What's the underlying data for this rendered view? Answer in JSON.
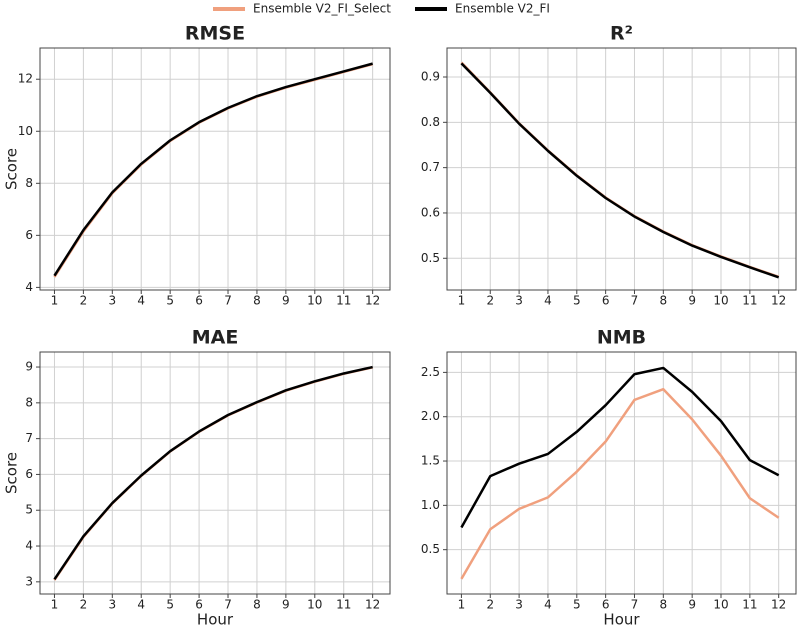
{
  "chart_data": [
    {
      "type": "line",
      "title": "RMSE",
      "ylabel": "Score",
      "x": [
        1,
        2,
        3,
        4,
        5,
        6,
        7,
        8,
        9,
        10,
        11,
        12
      ],
      "xlim": [
        0.5,
        12.6
      ],
      "xticks": [
        1,
        2,
        3,
        4,
        5,
        6,
        7,
        8,
        9,
        10,
        11,
        12
      ],
      "ylim": [
        3.9,
        13.2
      ],
      "yticks": [
        4,
        6,
        8,
        10,
        12
      ],
      "grid": true,
      "series": [
        {
          "name": "Ensemble V2_FI_Select",
          "color": "#f0a07e",
          "values": [
            4.4,
            6.15,
            7.62,
            8.72,
            9.63,
            10.33,
            10.88,
            11.33,
            11.68,
            11.98,
            12.28,
            12.58
          ]
        },
        {
          "name": "Ensemble V2_FI",
          "color": "#000000",
          "values": [
            4.45,
            6.2,
            7.65,
            8.75,
            9.65,
            10.35,
            10.9,
            11.35,
            11.7,
            12.0,
            12.3,
            12.6
          ]
        }
      ]
    },
    {
      "type": "line",
      "title": "R²",
      "x": [
        1,
        2,
        3,
        4,
        5,
        6,
        7,
        8,
        9,
        10,
        11,
        12
      ],
      "xlim": [
        0.5,
        12.6
      ],
      "xticks": [
        1,
        2,
        3,
        4,
        5,
        6,
        7,
        8,
        9,
        10,
        11,
        12
      ],
      "ylim": [
        0.43,
        0.964
      ],
      "yticks": [
        0.5,
        0.6,
        0.7,
        0.8,
        0.9
      ],
      "grid": true,
      "series": [
        {
          "name": "Ensemble V2_FI_Select",
          "color": "#f0a07e",
          "values": [
            0.932,
            0.866,
            0.798,
            0.738,
            0.683,
            0.634,
            0.593,
            0.559,
            0.529,
            0.504,
            0.481,
            0.459
          ]
        },
        {
          "name": "Ensemble V2_FI",
          "color": "#000000",
          "values": [
            0.93,
            0.865,
            0.797,
            0.737,
            0.682,
            0.633,
            0.592,
            0.558,
            0.528,
            0.503,
            0.48,
            0.458
          ]
        }
      ]
    },
    {
      "type": "line",
      "title": "MAE",
      "ylabel": "Score",
      "xlabel": "Hour",
      "x": [
        1,
        2,
        3,
        4,
        5,
        6,
        7,
        8,
        9,
        10,
        11,
        12
      ],
      "xlim": [
        0.5,
        12.6
      ],
      "xticks": [
        1,
        2,
        3,
        4,
        5,
        6,
        7,
        8,
        9,
        10,
        11,
        12
      ],
      "ylim": [
        2.66,
        9.42
      ],
      "yticks": [
        3,
        4,
        5,
        6,
        7,
        8,
        9
      ],
      "grid": true,
      "series": [
        {
          "name": "Ensemble V2_FI_Select",
          "color": "#f0a07e",
          "values": [
            3.05,
            4.25,
            5.19,
            5.96,
            6.64,
            7.19,
            7.65,
            8.01,
            8.34,
            8.59,
            8.81,
            8.99
          ]
        },
        {
          "name": "Ensemble V2_FI",
          "color": "#000000",
          "values": [
            3.07,
            4.27,
            5.2,
            5.97,
            6.65,
            7.2,
            7.66,
            8.02,
            8.35,
            8.6,
            8.82,
            9.0
          ]
        }
      ]
    },
    {
      "type": "line",
      "title": "NMB",
      "xlabel": "Hour",
      "x": [
        1,
        2,
        3,
        4,
        5,
        6,
        7,
        8,
        9,
        10,
        11,
        12
      ],
      "xlim": [
        0.5,
        12.6
      ],
      "xticks": [
        1,
        2,
        3,
        4,
        5,
        6,
        7,
        8,
        9,
        10,
        11,
        12
      ],
      "ylim": [
        0,
        2.73
      ],
      "yticks": [
        0.5,
        {
          "value": 1,
          "label": "1.0"
        },
        1.5,
        {
          "value": 2,
          "label": "2.0"
        },
        2.5
      ],
      "grid": true,
      "series": [
        {
          "name": "Ensemble V2_FI_Select",
          "color": "#f0a07e",
          "values": [
            0.17,
            0.73,
            0.96,
            1.09,
            1.38,
            1.72,
            2.19,
            2.31,
            1.97,
            1.56,
            1.08,
            0.86
          ]
        },
        {
          "name": "Ensemble V2_FI",
          "color": "#000000",
          "values": [
            0.75,
            1.33,
            1.47,
            1.58,
            1.83,
            2.13,
            2.48,
            2.55,
            2.28,
            1.95,
            1.51,
            1.34
          ]
        }
      ]
    }
  ]
}
